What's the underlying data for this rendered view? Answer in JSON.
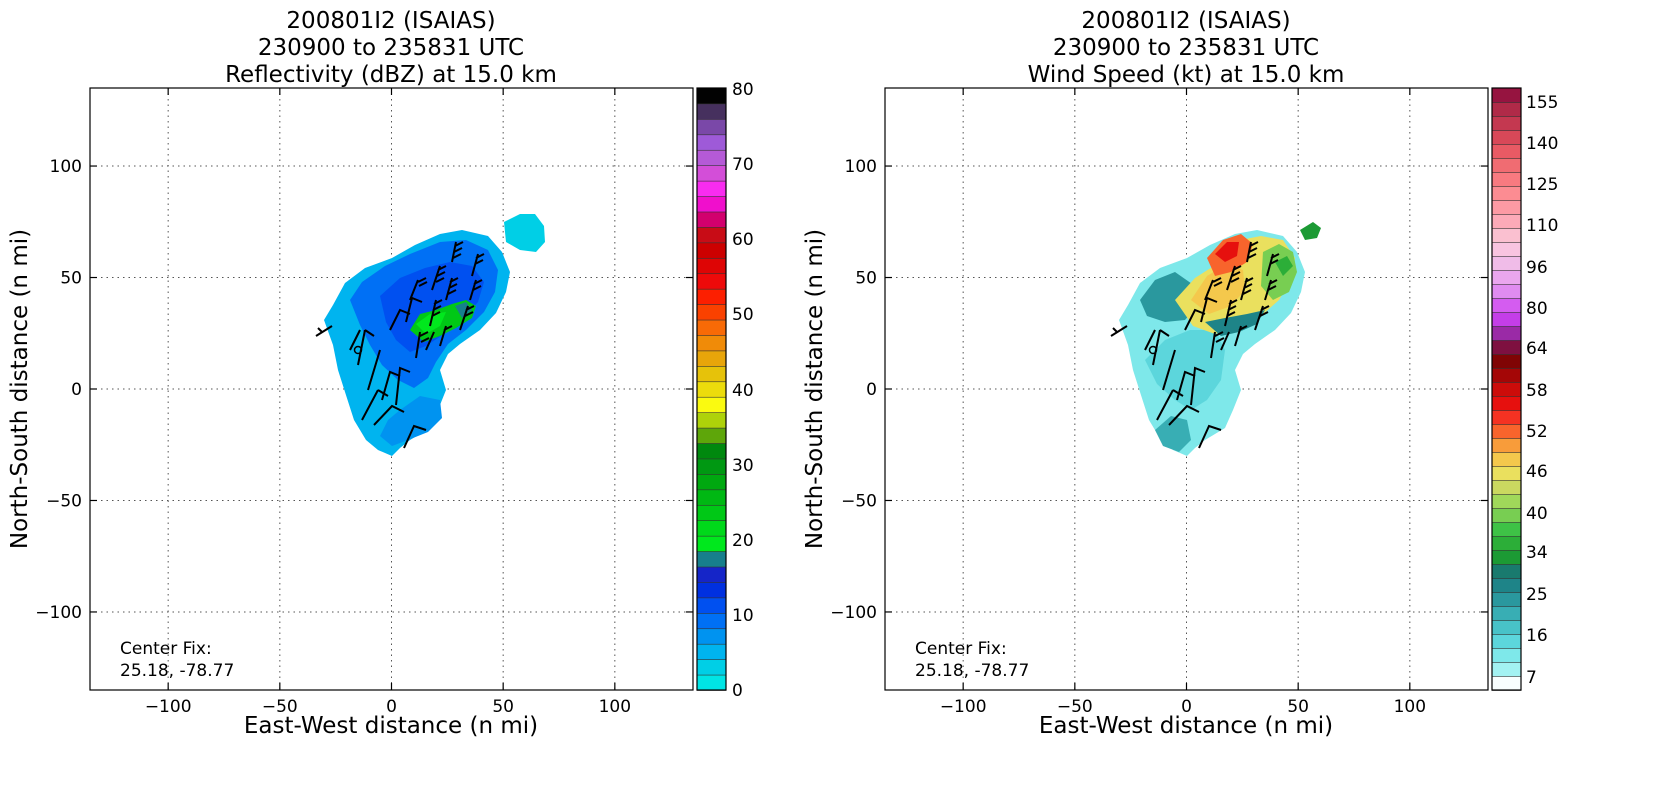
{
  "panels": [
    {
      "title_line1": "200801I2 (ISAIAS)",
      "title_line2": "230900 to 235831 UTC",
      "title_line3": "Reflectivity (dBZ) at 15.0 km",
      "xlabel": "East-West distance (n mi)",
      "ylabel": "North-South distance (n mi)",
      "center_fix_label": "Center Fix:",
      "center_fix_value": "25.18, -78.77",
      "colorbar_ticks": [
        "0",
        "10",
        "20",
        "30",
        "40",
        "50",
        "60",
        "70",
        "80"
      ]
    },
    {
      "title_line1": "200801I2 (ISAIAS)",
      "title_line2": "230900 to 235831 UTC",
      "title_line3": "Wind Speed (kt) at 15.0 km",
      "xlabel": "East-West distance (n mi)",
      "ylabel": "North-South distance (n mi)",
      "center_fix_label": "Center Fix:",
      "center_fix_value": "25.18, -78.77",
      "colorbar_ticks": [
        "7",
        "16",
        "25",
        "34",
        "40",
        "46",
        "52",
        "58",
        "64",
        "80",
        "96",
        "110",
        "125",
        "140",
        "155"
      ]
    }
  ],
  "chart_data": [
    {
      "type": "heatmap",
      "title": "200801I2 (ISAIAS) 230900 to 235831 UTC Reflectivity (dBZ) at 15.0 km",
      "xlabel": "East-West distance (n mi)",
      "ylabel": "North-South distance (n mi)",
      "xlim": [
        -135,
        135
      ],
      "ylim": [
        -135,
        135
      ],
      "xticks": [
        -100,
        -50,
        0,
        50,
        100
      ],
      "yticks": [
        -100,
        -50,
        0,
        50,
        100
      ],
      "grid": true,
      "colorbar": {
        "label": "Reflectivity (dBZ)",
        "range": [
          0,
          80
        ],
        "ticks": [
          0,
          10,
          20,
          30,
          40,
          50,
          60,
          70,
          80
        ],
        "colors": [
          "#00e5e5",
          "#00cfe6",
          "#00b4ef",
          "#0093f0",
          "#0070f5",
          "#0050f0",
          "#0030e0",
          "#1525c8",
          "#177f8c",
          "#00e81d",
          "#00d81a",
          "#00c816",
          "#00b813",
          "#00a810",
          "#009812",
          "#00880e",
          "#5ea60a",
          "#aed20a",
          "#fafa10",
          "#ecdc0c",
          "#e6c20a",
          "#e8a50a",
          "#f08b08",
          "#f86a06",
          "#fa4100",
          "#fc1f00",
          "#ee0a0a",
          "#de0505",
          "#cc0000",
          "#c80c16",
          "#d2006e",
          "#f00fcc",
          "#f82cf0",
          "#d34ed8",
          "#b55ad7",
          "#9e5ad8",
          "#7a48a8",
          "#46305e",
          "#020202"
        ]
      },
      "echo_field": {
        "extent": {
          "x": [
            -35,
            68
          ],
          "y": [
            -30,
            80
          ]
        },
        "dominant_dbz": "0-15",
        "core_dbz": "20-30",
        "core_location": [
          20,
          30
        ]
      },
      "center_fix": {
        "lat": 25.18,
        "lon": -78.77
      },
      "wind_barbs": true
    },
    {
      "type": "heatmap",
      "title": "200801I2 (ISAIAS) 230900 to 235831 UTC Wind Speed (kt) at 15.0 km",
      "xlabel": "East-West distance (n mi)",
      "ylabel": "North-South distance (n mi)",
      "xlim": [
        -135,
        135
      ],
      "ylim": [
        -135,
        135
      ],
      "xticks": [
        -100,
        -50,
        0,
        50,
        100
      ],
      "yticks": [
        -100,
        -50,
        0,
        50,
        100
      ],
      "grid": true,
      "colorbar": {
        "label": "Wind Speed (kt)",
        "ticks": [
          7,
          16,
          25,
          34,
          40,
          46,
          52,
          58,
          64,
          80,
          96,
          110,
          125,
          140,
          155
        ],
        "colors": [
          "#f8fefe",
          "#a2f2f2",
          "#7ee8ea",
          "#5cd6dc",
          "#48c2c8",
          "#38aeb4",
          "#2a989e",
          "#1e8488",
          "#197a6e",
          "#1c9a34",
          "#2cae38",
          "#3ec246",
          "#78ce52",
          "#a0d85a",
          "#cad860",
          "#eae05e",
          "#f4c84c",
          "#f89c3a",
          "#f8642c",
          "#f43222",
          "#e6100e",
          "#cc0c0a",
          "#a40606",
          "#800404",
          "#7e1040",
          "#9a2aa6",
          "#c43ee8",
          "#d45cf0",
          "#e08cf0",
          "#eaa6ee",
          "#f0bce8",
          "#f8c4e0",
          "#fac0d0",
          "#fcaab8",
          "#fc9aa4",
          "#fc8c92",
          "#f87a80",
          "#f06c72",
          "#e85a64",
          "#d84858",
          "#c43850",
          "#b02a48",
          "#961440"
        ]
      },
      "wind_field": {
        "extent": {
          "x": [
            -35,
            68
          ],
          "y": [
            -30,
            80
          ]
        },
        "southern_kt": "7-34",
        "northern_kt": "34-64",
        "max_location": [
          22,
          62
        ]
      },
      "center_fix": {
        "lat": 25.18,
        "lon": -78.77
      },
      "wind_barbs": true
    }
  ]
}
